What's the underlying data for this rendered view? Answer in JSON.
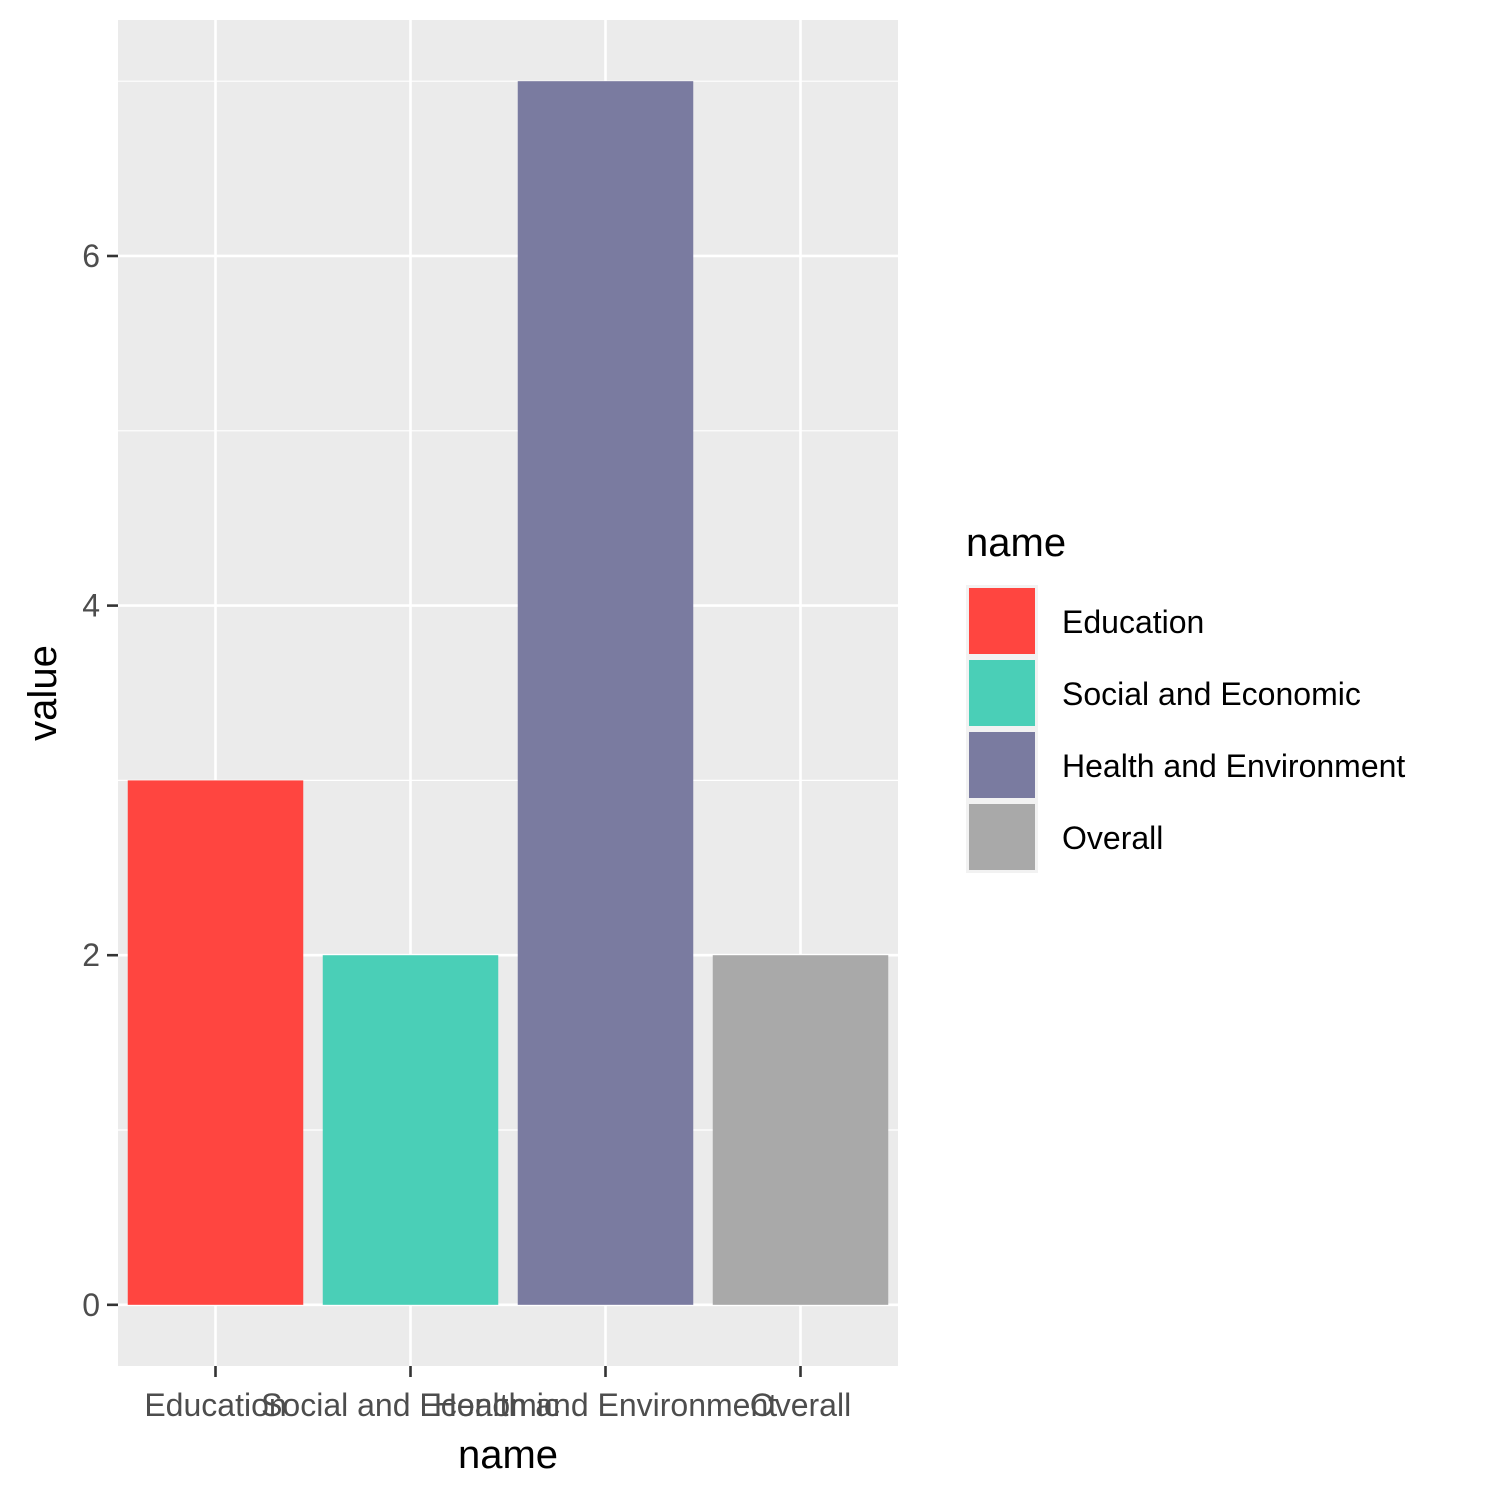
{
  "chart_data": {
    "type": "bar",
    "categories": [
      "Education",
      "Social and Economic",
      "Health and Environment",
      "Overall"
    ],
    "values": [
      3,
      2,
      7,
      2
    ],
    "colors": [
      "#FF4540",
      "#4ACFB7",
      "#7A7BA0",
      "#A9A9A9"
    ],
    "xlabel": "name",
    "ylabel": "value",
    "ylim": [
      -0.35,
      7.35
    ],
    "yticks": [
      0,
      2,
      4,
      6
    ],
    "grid": true,
    "panel_background": "#EBEBEB",
    "legend": {
      "title": "name",
      "position": "right",
      "entries": [
        "Education",
        "Social and Economic",
        "Health and Environment",
        "Overall"
      ]
    }
  }
}
